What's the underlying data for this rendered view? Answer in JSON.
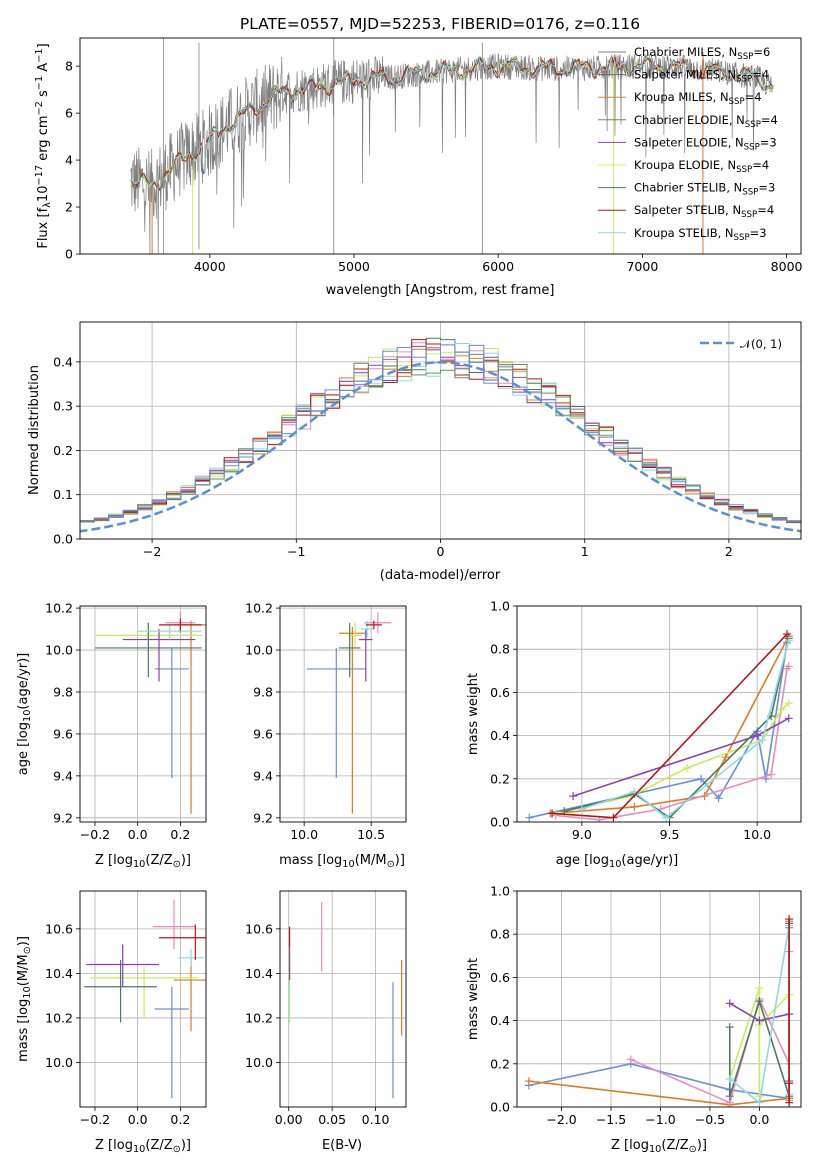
{
  "title": "PLATE=0557, MJD=52253, FIBERID=0176, z=0.116",
  "colors": {
    "Chabrier MILES": "#808080",
    "Salpeter MILES": "#6a6a6a",
    "Kroupa MILES": "#e08a1e",
    "Chabrier ELODIE": "#6b8e5a",
    "Salpeter ELODIE": "#8e3db4",
    "Kroupa ELODIE": "#dce96a",
    "Chabrier STELIB": "#4d7a5e",
    "Salpeter STELIB": "#b01818",
    "Kroupa STELIB": "#8fd8e3",
    "blue": "#6b8fd8",
    "orange": "#e07b22",
    "pink": "#e68cc0",
    "lime": "#c9ec5a"
  },
  "chart_data": [
    {
      "type": "line",
      "id": "spectrum",
      "title": "PLATE=0557, MJD=52253, FIBERID=0176, z=0.116",
      "xlabel": "wavelength [Angstrom, rest frame]",
      "ylabel": "Flux [f_λ 10^-17 erg cm^-2 s^-1 A^-1]",
      "xlim": [
        3100,
        8100
      ],
      "ylim": [
        0,
        9.2
      ],
      "xticks": [
        4000,
        5000,
        6000,
        7000,
        8000
      ],
      "yticks": [
        0,
        2,
        4,
        6,
        8
      ],
      "legend_position": "top-right",
      "continuum_x": [
        3450,
        3600,
        3800,
        4000,
        4100,
        4300,
        4500,
        4800,
        5000,
        5200,
        5500,
        5800,
        6000,
        6300,
        6600,
        6900,
        7200,
        7500,
        7800,
        7900
      ],
      "continuum_y": [
        3.1,
        2.9,
        4.0,
        4.8,
        5.4,
        6.2,
        6.9,
        7.2,
        7.4,
        7.5,
        7.7,
        7.9,
        8.0,
        7.9,
        7.9,
        8.0,
        8.0,
        7.8,
        7.5,
        7.1
      ],
      "series": [
        {
          "name": "Chabrier MILES, N_SSP=6",
          "label": "Chabrier MILES",
          "nssp": "6"
        },
        {
          "name": "Salpeter MILES, N_SSP=4",
          "label": "Salpeter MILES",
          "nssp": "4"
        },
        {
          "name": "Kroupa MILES, N_SSP=4",
          "label": "Kroupa MILES",
          "nssp": "4"
        },
        {
          "name": "Chabrier ELODIE, N_SSP=4",
          "label": "Chabrier ELODIE",
          "nssp": "4"
        },
        {
          "name": "Salpeter ELODIE, N_SSP=3",
          "label": "Salpeter ELODIE",
          "nssp": "3"
        },
        {
          "name": "Kroupa ELODIE, N_SSP=4",
          "label": "Kroupa ELODIE",
          "nssp": "4"
        },
        {
          "name": "Chabrier STELIB, N_SSP=3",
          "label": "Chabrier STELIB",
          "nssp": "3"
        },
        {
          "name": "Salpeter STELIB, N_SSP=4",
          "label": "Salpeter STELIB",
          "nssp": "4"
        },
        {
          "name": "Kroupa STELIB, N_SSP=3",
          "label": "Kroupa STELIB",
          "nssp": "3"
        }
      ]
    },
    {
      "type": "line",
      "id": "residuals",
      "xlabel": "(data-model)/error",
      "ylabel": "Normed distribution",
      "xlim": [
        -2.5,
        2.5
      ],
      "ylim": [
        0,
        0.49
      ],
      "xticks": [
        -2,
        -1,
        0,
        1,
        2
      ],
      "yticks": [
        0.0,
        0.1,
        0.2,
        0.3,
        0.4
      ],
      "grid": true,
      "legend_position": "top-right",
      "gaussian_label": "𝒩(0, 1)",
      "bin_width": 0.1
    },
    {
      "type": "scatter",
      "id": "age_vs_Z",
      "xlabel": "Z [log10(Z/Z⊙)]",
      "ylabel": "age [log10(age/yr)]",
      "xlim": [
        -0.27,
        0.32
      ],
      "ylim": [
        9.18,
        10.21
      ],
      "xticks": [
        -0.2,
        0.0,
        0.2
      ],
      "yticks": [
        9.2,
        9.4,
        9.6,
        9.8,
        10.0,
        10.2
      ],
      "grid": true,
      "points": [
        {
          "x": 0.16,
          "y": 9.91,
          "xerr": 0.08,
          "yerr": [
            0.52,
            0.1
          ],
          "color": "blue"
        },
        {
          "x": 0.25,
          "y": 10.12,
          "xerr": 0.08,
          "yerr": [
            0.9,
            0.02
          ],
          "color": "orange"
        },
        {
          "x": 0.2,
          "y": 10.13,
          "xerr": 0.07,
          "yerr": 0.05,
          "color": "pink"
        },
        {
          "x": 0.05,
          "y": 10.07,
          "xerr": 0.25,
          "yerr": 0.06,
          "color": "lime"
        },
        {
          "x": 0.1,
          "y": 10.05,
          "xerr": 0.17,
          "yerr": [
            0.2,
            0.05
          ],
          "color": "Salpeter ELODIE"
        },
        {
          "x": 0.05,
          "y": 10.01,
          "xerr": 0.25,
          "yerr": [
            0.14,
            0.12
          ],
          "color": "Chabrier STELIB"
        },
        {
          "x": 0.15,
          "y": 10.09,
          "xerr": 0.15,
          "yerr": 0.04,
          "color": "Kroupa STELIB"
        },
        {
          "x": 0.2,
          "y": 10.12,
          "xerr": 0.1,
          "yerr": 0.03,
          "color": "Salpeter STELIB"
        }
      ]
    },
    {
      "type": "scatter",
      "id": "age_vs_mass",
      "xlabel": "mass [log10(M/M⊙)]",
      "ylabel": "",
      "xlim": [
        9.82,
        10.76
      ],
      "ylim": [
        9.18,
        10.21
      ],
      "xticks": [
        10.0,
        10.5
      ],
      "yticks": [
        9.2,
        9.4,
        9.6,
        9.8,
        10.0,
        10.2
      ],
      "grid": true,
      "points": [
        {
          "x": 10.24,
          "y": 9.91,
          "xerr": 0.22,
          "yerr": [
            0.52,
            0.1
          ],
          "color": "blue"
        },
        {
          "x": 10.36,
          "y": 10.08,
          "xerr": 0.1,
          "yerr": [
            0.86,
            0.03
          ],
          "color": "orange"
        },
        {
          "x": 10.55,
          "y": 10.13,
          "xerr": 0.1,
          "yerr": 0.05,
          "color": "pink"
        },
        {
          "x": 10.38,
          "y": 10.07,
          "xerr": 0.05,
          "yerr": 0.06,
          "color": "lime"
        },
        {
          "x": 10.46,
          "y": 10.05,
          "xerr": 0.05,
          "yerr": [
            0.2,
            0.05
          ],
          "color": "Salpeter ELODIE"
        },
        {
          "x": 10.34,
          "y": 10.01,
          "xerr": 0.08,
          "yerr": [
            0.14,
            0.12
          ],
          "color": "Chabrier STELIB"
        },
        {
          "x": 10.47,
          "y": 10.1,
          "xerr": 0.05,
          "yerr": 0.04,
          "color": "Kroupa STELIB"
        },
        {
          "x": 10.52,
          "y": 10.12,
          "xerr": 0.06,
          "yerr": 0.02,
          "color": "Salpeter STELIB"
        }
      ]
    },
    {
      "type": "line",
      "id": "massweight_vs_age",
      "xlabel": "age [log10(age/yr)]",
      "ylabel": "mass weight",
      "xlim": [
        8.63,
        10.25
      ],
      "ylim": [
        0,
        1.0
      ],
      "xticks": [
        9.0,
        9.5,
        10.0
      ],
      "yticks": [
        0.0,
        0.2,
        0.4,
        0.6,
        0.8,
        1.0
      ],
      "grid": true,
      "series": [
        {
          "color": "blue",
          "x": [
            8.7,
            9.68,
            9.78,
            10.0,
            10.05,
            10.17
          ],
          "y": [
            0.02,
            0.2,
            0.11,
            0.42,
            0.2,
            0.83
          ]
        },
        {
          "color": "orange",
          "x": [
            8.82,
            9.3,
            9.7,
            9.82,
            10.18
          ],
          "y": [
            0.04,
            0.07,
            0.12,
            0.3,
            0.86
          ]
        },
        {
          "color": "pink",
          "x": [
            8.85,
            9.1,
            9.45,
            10.08,
            10.17,
            10.18
          ],
          "y": [
            0.03,
            0.01,
            0.06,
            0.22,
            0.71,
            0.72
          ]
        },
        {
          "color": "lime",
          "x": [
            8.85,
            9.28,
            9.6,
            10.03,
            10.14,
            10.18
          ],
          "y": [
            0.04,
            0.12,
            0.25,
            0.38,
            0.52,
            0.55
          ]
        },
        {
          "color": "Salpeter ELODIE",
          "x": [
            8.95,
            10.0,
            10.18
          ],
          "y": [
            0.12,
            0.4,
            0.48
          ]
        },
        {
          "color": "Chabrier STELIB",
          "x": [
            8.9,
            9.3,
            9.5,
            10.08,
            10.18
          ],
          "y": [
            0.05,
            0.13,
            0.02,
            0.49,
            0.85
          ]
        },
        {
          "color": "Kroupa STELIB",
          "x": [
            9.0,
            9.3,
            9.48,
            10.03,
            10.18
          ],
          "y": [
            0.06,
            0.14,
            0.02,
            0.38,
            0.84
          ]
        },
        {
          "color": "Salpeter STELIB",
          "x": [
            8.83,
            9.18,
            10.17
          ],
          "y": [
            0.04,
            0.02,
            0.87
          ]
        }
      ]
    },
    {
      "type": "scatter",
      "id": "mass_vs_Z",
      "xlabel": "Z [log10(Z/Z⊙)]",
      "ylabel": "mass [log10(M/M⊙)]",
      "xlim": [
        -0.27,
        0.32
      ],
      "ylim": [
        9.8,
        10.77
      ],
      "xticks": [
        -0.2,
        0.0,
        0.2
      ],
      "yticks": [
        10.0,
        10.2,
        10.4,
        10.6
      ],
      "grid": true,
      "points": [
        {
          "x": 0.16,
          "y": 10.24,
          "xerr": 0.08,
          "yerr": [
            0.4,
            0.1
          ],
          "color": "blue"
        },
        {
          "x": 0.25,
          "y": 10.37,
          "xerr": 0.08,
          "yerr": [
            0.23,
            0.1
          ],
          "color": "orange"
        },
        {
          "x": 0.17,
          "y": 10.61,
          "xerr": 0.1,
          "yerr": [
            0.1,
            0.12
          ],
          "color": "pink"
        },
        {
          "x": 0.03,
          "y": 10.38,
          "xerr": 0.25,
          "yerr": [
            0.18,
            0.05
          ],
          "color": "lime"
        },
        {
          "x": -0.07,
          "y": 10.44,
          "xerr": 0.17,
          "yerr": [
            0.1,
            0.09
          ],
          "color": "Salpeter ELODIE"
        },
        {
          "x": -0.08,
          "y": 10.34,
          "xerr": 0.17,
          "yerr": [
            0.16,
            0.12
          ],
          "color": "Chabrier STELIB"
        },
        {
          "x": 0.25,
          "y": 10.47,
          "xerr": 0.06,
          "yerr": 0.04,
          "color": "Kroupa STELIB"
        },
        {
          "x": 0.27,
          "y": 10.56,
          "xerr": 0.17,
          "yerr": [
            0.1,
            0.06
          ],
          "color": "Salpeter STELIB"
        }
      ]
    },
    {
      "type": "scatter",
      "id": "mass_vs_ebv",
      "xlabel": "E(B-V)",
      "ylabel": "",
      "xlim": [
        -0.01,
        0.135
      ],
      "ylim": [
        9.8,
        10.77
      ],
      "xticks": [
        0.0,
        0.05,
        0.1
      ],
      "yticks": [
        10.0,
        10.2,
        10.4,
        10.6
      ],
      "grid": true,
      "points": [
        {
          "x": 0.12,
          "y": 10.1,
          "yerr": [
            0.26,
            0.26
          ],
          "color": "blue"
        },
        {
          "x": 0.13,
          "y": 10.29,
          "yerr": [
            0.17,
            0.17
          ],
          "color": "orange"
        },
        {
          "x": 0.038,
          "y": 10.57,
          "yerr": [
            0.16,
            0.15
          ],
          "color": "pink"
        },
        {
          "x": 0.001,
          "y": 10.33,
          "yerr": [
            0.15,
            0.1
          ],
          "color": "lime"
        },
        {
          "x": 0.001,
          "y": 10.49,
          "yerr": [
            0.12,
            0.12
          ],
          "color": "Salpeter STELIB"
        },
        {
          "x": 0.0,
          "y": 10.35,
          "yerr": [
            0.17,
            0.17
          ],
          "color": "Kroupa STELIB"
        }
      ]
    },
    {
      "type": "line",
      "id": "massweight_vs_Z",
      "xlabel": "Z [log10(Z/Z⊙)]",
      "ylabel": "mass weight",
      "xlim": [
        -2.45,
        0.42
      ],
      "ylim": [
        0,
        1.0
      ],
      "xticks": [
        -2.0,
        -1.5,
        -1.0,
        -0.5,
        0.0
      ],
      "yticks": [
        0.0,
        0.2,
        0.4,
        0.6,
        0.8,
        1.0
      ],
      "grid": true,
      "series": [
        {
          "color": "blue",
          "x": [
            -2.33,
            -1.3,
            -0.3,
            0.3,
            0.3
          ],
          "y": [
            0.1,
            0.2,
            0.08,
            0.04,
            0.83
          ]
        },
        {
          "color": "orange",
          "x": [
            -2.33,
            -0.3,
            0.3,
            0.3
          ],
          "y": [
            0.12,
            0.01,
            0.04,
            0.86
          ]
        },
        {
          "color": "pink",
          "x": [
            -1.3,
            -0.3,
            0.0,
            0.3,
            0.3,
            0.3
          ],
          "y": [
            0.22,
            0.02,
            0.5,
            0.2,
            0.72,
            0.03
          ]
        },
        {
          "color": "lime",
          "x": [
            -0.3,
            0.0,
            0.0,
            0.0,
            0.3
          ],
          "y": [
            0.13,
            0.55,
            0.05,
            0.38,
            0.52
          ]
        },
        {
          "color": "Salpeter ELODIE",
          "x": [
            -0.3,
            0.0,
            0.3,
            0.3
          ],
          "y": [
            0.48,
            0.4,
            0.43,
            0.12
          ]
        },
        {
          "color": "Chabrier STELIB",
          "x": [
            -0.3,
            -0.3,
            0.0,
            0.3,
            0.3
          ],
          "y": [
            0.37,
            0.05,
            0.49,
            0.05,
            0.85
          ]
        },
        {
          "color": "Kroupa STELIB",
          "x": [
            -0.3,
            0.0,
            0.3,
            0.3
          ],
          "y": [
            0.13,
            0.02,
            0.84,
            0.06
          ]
        },
        {
          "color": "Salpeter STELIB",
          "x": [
            0.3,
            0.3,
            0.3
          ],
          "y": [
            0.87,
            0.11,
            0.02
          ]
        }
      ]
    }
  ]
}
